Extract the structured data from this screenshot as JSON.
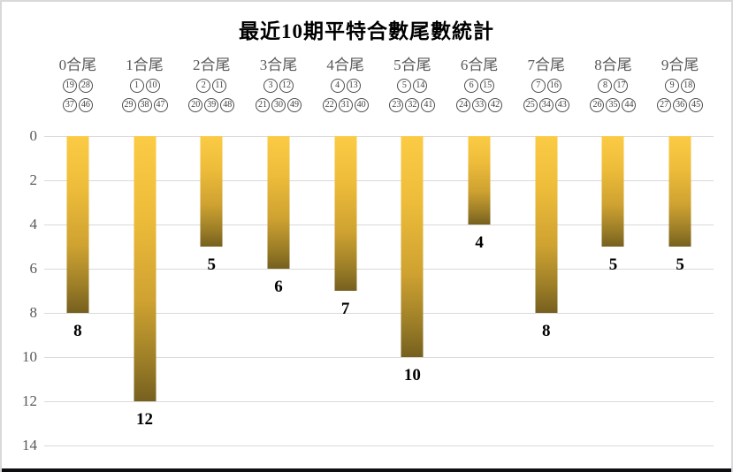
{
  "title": "最近10期平特合數尾數統計",
  "colors": {
    "bar_gradient_top": "#fccb45",
    "bar_gradient_bottom": "#76601f",
    "gridline": "#d9d9d9",
    "axis_text": "#595959",
    "category_text": "#595959",
    "ball_circle": "#4d4d4d",
    "value_text": "#000000",
    "frame_border": "#d9d9d9",
    "bottom_strip": "#0d0d12"
  },
  "chart_data": {
    "type": "bar",
    "title": "最近10期平特合數尾數統計",
    "orientation": "vertical-hanging-from-zero",
    "categories": [
      "0合尾",
      "1合尾",
      "2合尾",
      "3合尾",
      "4合尾",
      "5合尾",
      "6合尾",
      "7合尾",
      "8合尾",
      "9合尾"
    ],
    "values": [
      8,
      12,
      5,
      6,
      7,
      10,
      4,
      8,
      5,
      5
    ],
    "ball_numbers": [
      {
        "row1": [
          "19",
          "28"
        ],
        "row2": [
          "37",
          "46"
        ]
      },
      {
        "row1": [
          "1",
          "10"
        ],
        "row2": [
          "29",
          "38",
          "47"
        ]
      },
      {
        "row1": [
          "2",
          "11"
        ],
        "row2": [
          "20",
          "39",
          "48"
        ]
      },
      {
        "row1": [
          "3",
          "12"
        ],
        "row2": [
          "21",
          "30",
          "49"
        ]
      },
      {
        "row1": [
          "4",
          "13"
        ],
        "row2": [
          "22",
          "31",
          "40"
        ]
      },
      {
        "row1": [
          "5",
          "14"
        ],
        "row2": [
          "23",
          "32",
          "41"
        ]
      },
      {
        "row1": [
          "6",
          "15"
        ],
        "row2": [
          "24",
          "33",
          "42"
        ]
      },
      {
        "row1": [
          "7",
          "16"
        ],
        "row2": [
          "25",
          "34",
          "43"
        ]
      },
      {
        "row1": [
          "8",
          "17"
        ],
        "row2": [
          "26",
          "35",
          "44"
        ]
      },
      {
        "row1": [
          "9",
          "18"
        ],
        "row2": [
          "27",
          "36",
          "45"
        ]
      }
    ],
    "y_ticks": [
      0,
      2,
      4,
      6,
      8,
      10,
      12,
      14
    ],
    "ylim": [
      0,
      14
    ],
    "xlabel": "",
    "ylabel": "",
    "grid": true,
    "legend": false
  }
}
